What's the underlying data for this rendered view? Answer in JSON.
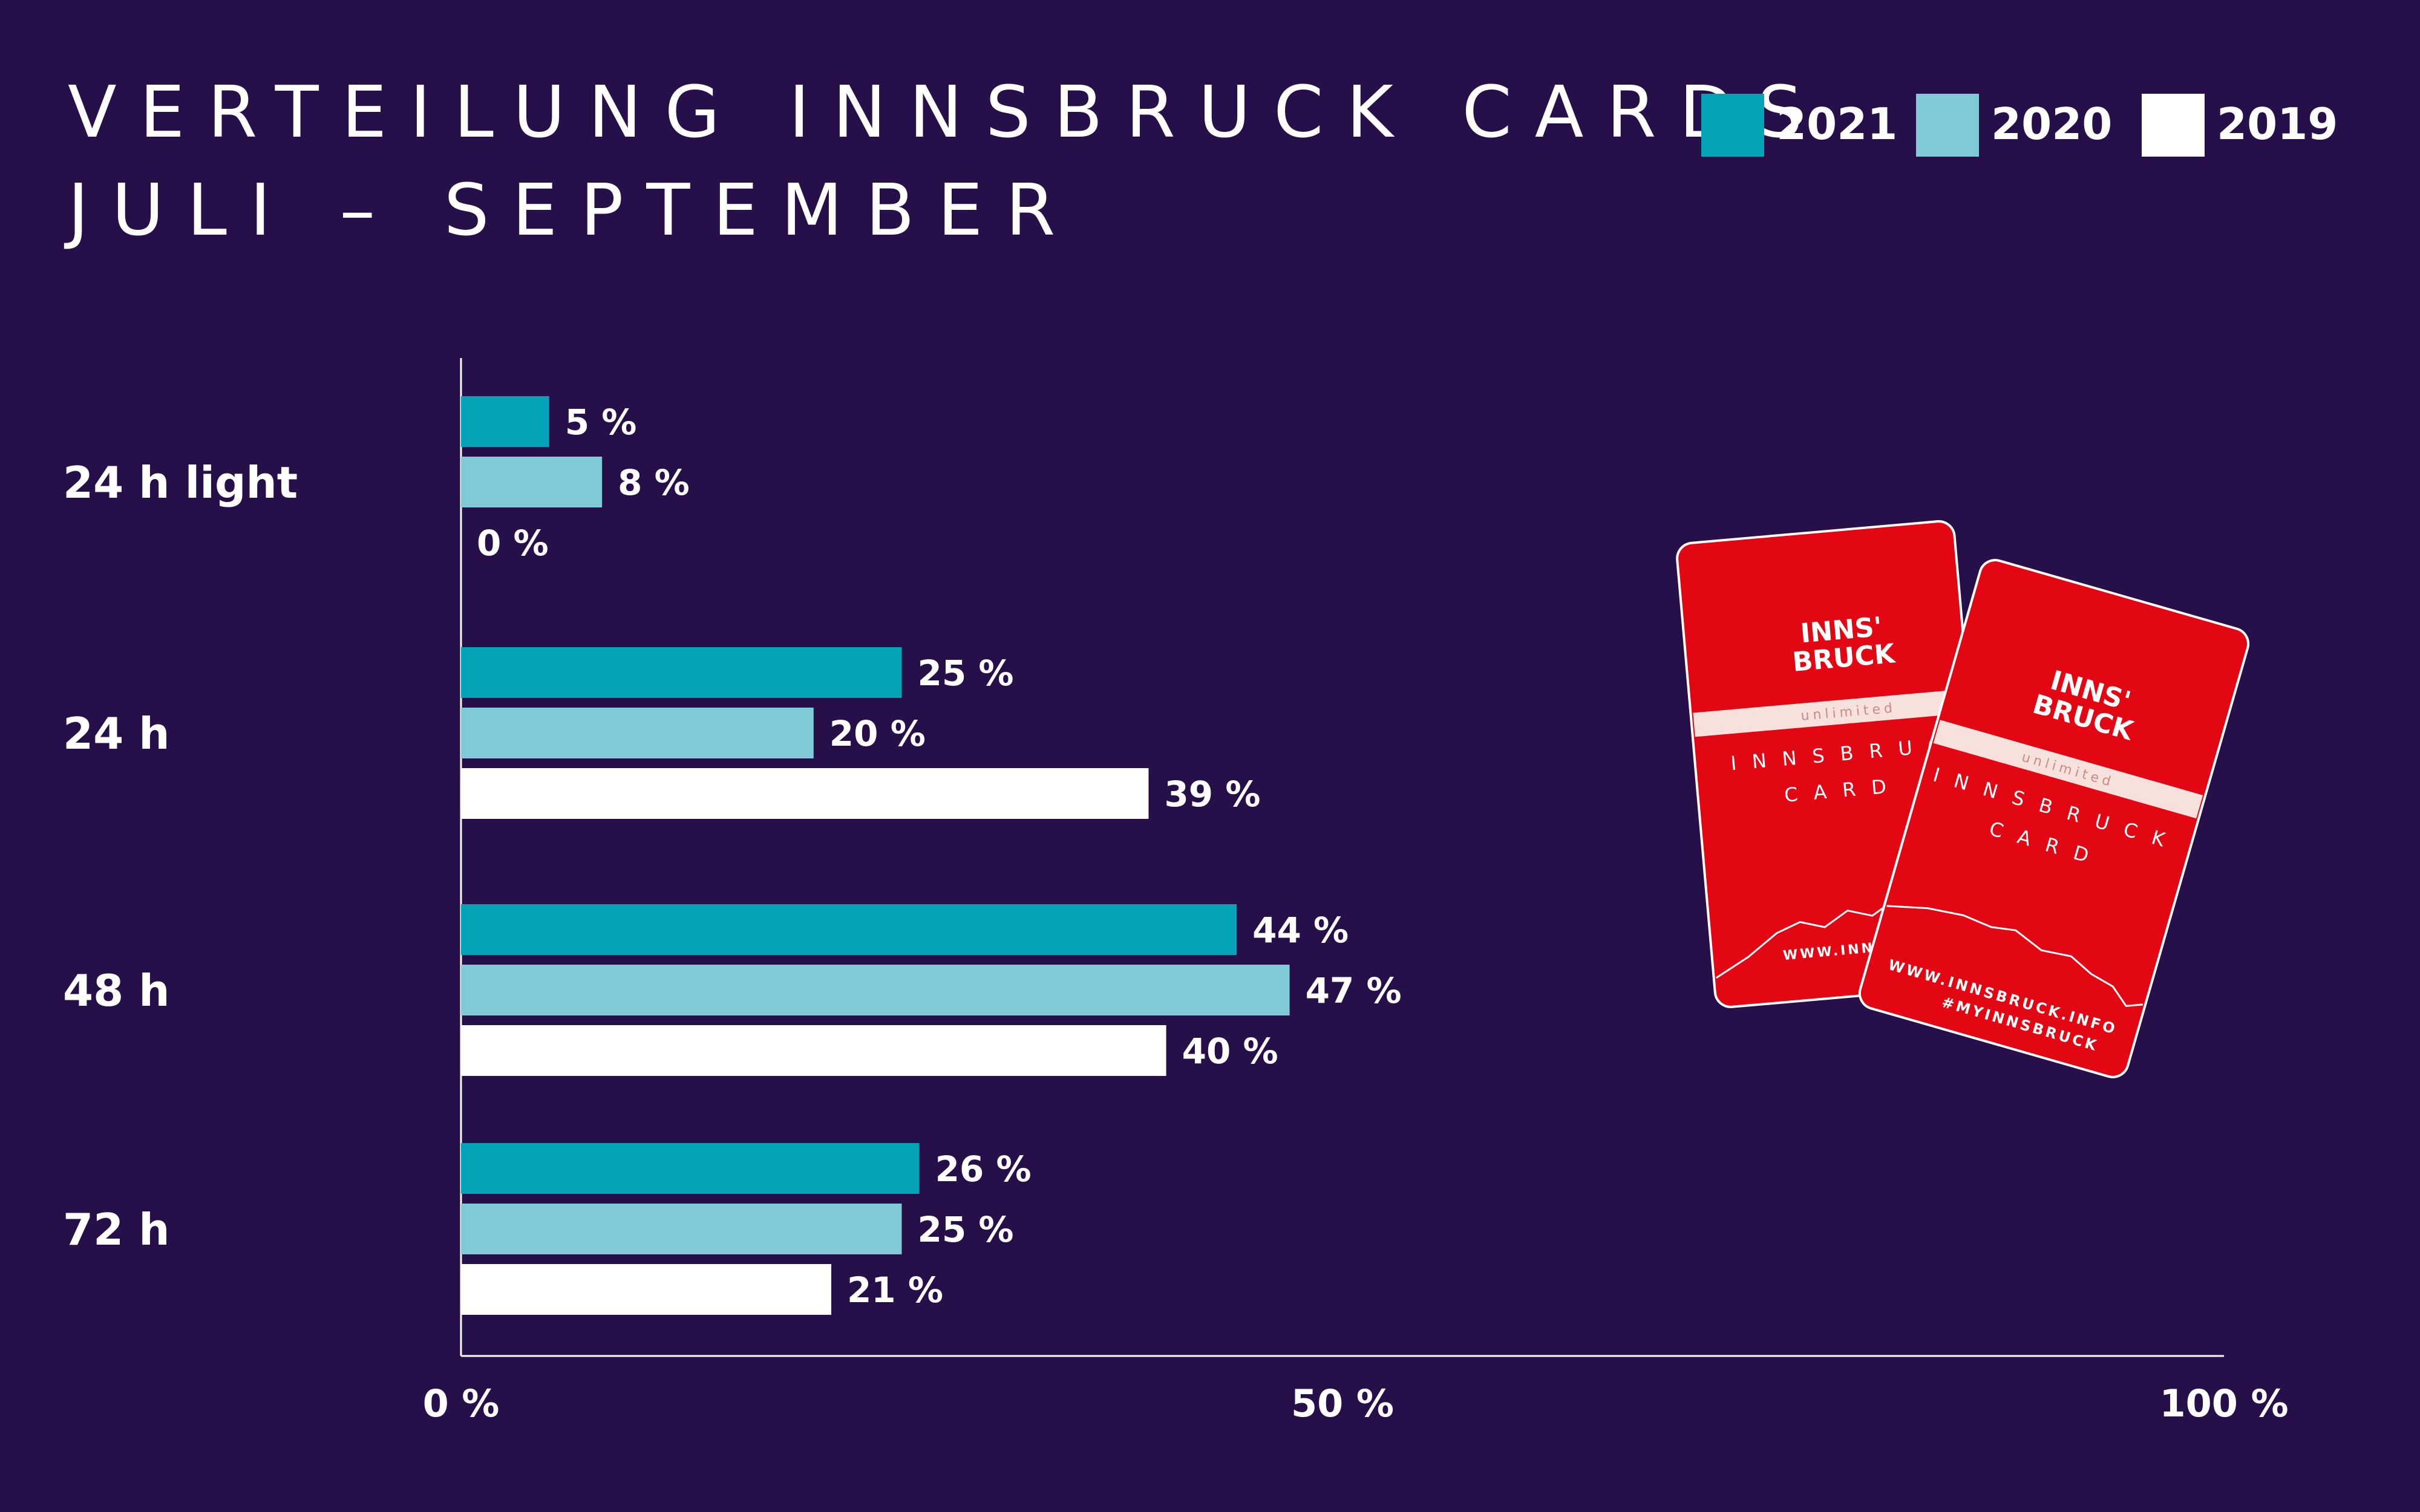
{
  "title": [
    "VERTEILUNG INNSBRUCK CARDS",
    "JULI – SEPTEMBER"
  ],
  "legend": [
    {
      "label": "2021",
      "color": "#05a3b7"
    },
    {
      "label": "2020",
      "color": "#7fcad6"
    },
    {
      "label": "2019",
      "color": "#ffffff"
    }
  ],
  "chart_data": {
    "type": "bar",
    "orientation": "horizontal",
    "title": "VERTEILUNG INNSBRUCK CARDS JULI – SEPTEMBER",
    "categories": [
      "24 h light",
      "24 h",
      "48 h",
      "72 h"
    ],
    "series": [
      {
        "name": "2021",
        "color": "#05a3b7",
        "values": [
          5,
          25,
          44,
          26
        ],
        "labels": [
          "5 %",
          "25 %",
          "44 %",
          "26 %"
        ]
      },
      {
        "name": "2020",
        "color": "#7fcad6",
        "values": [
          8,
          20,
          47,
          25
        ],
        "labels": [
          "8 %",
          "20 %",
          "47 %",
          "25 %"
        ]
      },
      {
        "name": "2019",
        "color": "#ffffff",
        "values": [
          0,
          39,
          40,
          21
        ],
        "labels": [
          "0 %",
          "39 %",
          "40 %",
          "21 %"
        ]
      }
    ],
    "xlim": [
      0,
      100
    ],
    "x_ticks": [
      0,
      50,
      100
    ],
    "x_tick_labels": [
      "0 %",
      "50 %",
      "100 %"
    ],
    "grid": false,
    "legend_position": "top-right"
  },
  "cards": {
    "brand_line1": "INNS'",
    "brand_line2": "BRUCK",
    "tagline": "unlimited",
    "name_line1": "INNSBRUCK",
    "name_line2": "CARD",
    "url": "WWW.INNSBRUCK.INFO",
    "hashtag": "#MYINNSBRUCK",
    "color": "#e30613"
  }
}
